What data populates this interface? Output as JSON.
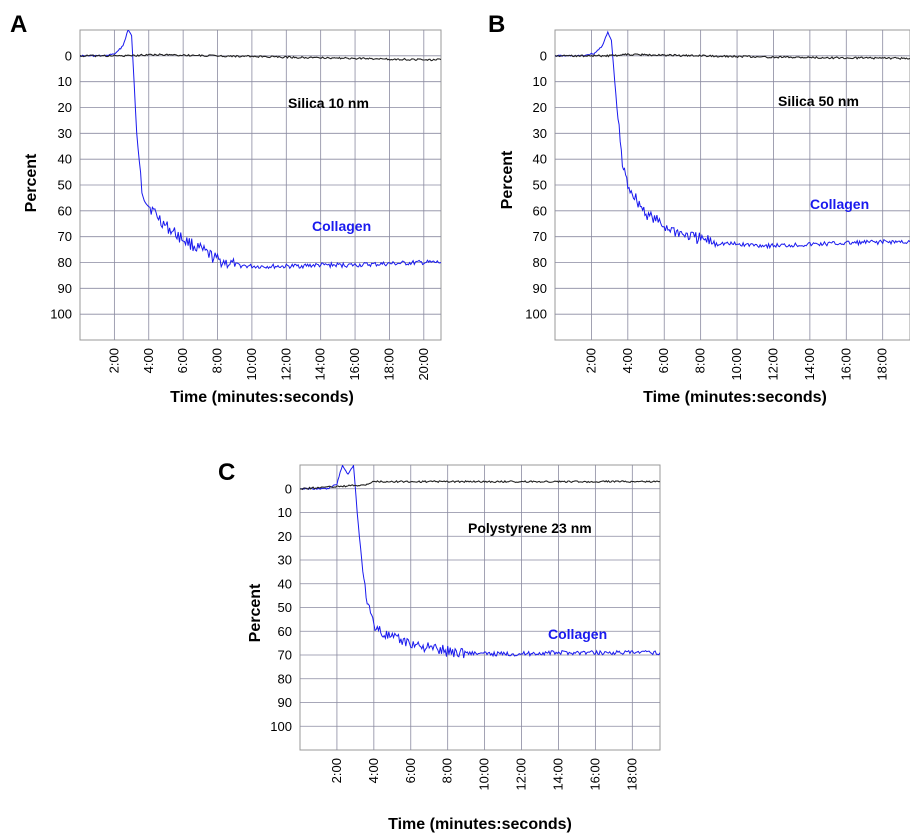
{
  "chart_data": [
    {
      "panel": "A",
      "type": "line",
      "xlabel": "Time (minutes:seconds)",
      "ylabel": "Percent",
      "annotation": "Silica 10 nm",
      "xlim": [
        0,
        21
      ],
      "ylim": [
        -10,
        110
      ],
      "y_inverted": true,
      "grid": true,
      "x_ticks": [
        "2:00",
        "4:00",
        "6:00",
        "8:00",
        "10:00",
        "12:00",
        "14:00",
        "16:00",
        "18:00",
        "20:00"
      ],
      "y_ticks": [
        "0",
        "10",
        "20",
        "30",
        "40",
        "50",
        "60",
        "70",
        "80",
        "90",
        "100"
      ],
      "series": [
        {
          "name": "Collagen",
          "color": "#1a1aee",
          "x": [
            0.0,
            1.5,
            2.1,
            2.5,
            2.8,
            3.0,
            3.3,
            3.6,
            4.0,
            4.5,
            5.0,
            6.0,
            7.0,
            8.0,
            9.0,
            10.0,
            12.0,
            14.0,
            16.0,
            18.0,
            20.0,
            21.0
          ],
          "y": [
            0,
            0,
            -1,
            -4,
            -10,
            -8,
            30,
            52,
            58,
            62,
            66,
            71,
            75,
            79,
            81,
            81.5,
            81.5,
            81,
            81,
            80.5,
            80,
            80
          ]
        },
        {
          "name": "",
          "color": "#222222",
          "x": [
            0.0,
            2.0,
            3.0,
            4.0,
            8.0,
            12.0,
            16.0,
            20.0,
            21.0
          ],
          "y": [
            0,
            0,
            0,
            -0.5,
            0,
            0.5,
            1,
            1.5,
            1.5
          ]
        }
      ]
    },
    {
      "panel": "B",
      "type": "line",
      "xlabel": "Time (minutes:seconds)",
      "ylabel": "Percent",
      "annotation": "Silica 50 nm",
      "xlim": [
        0,
        19.5
      ],
      "ylim": [
        -10,
        110
      ],
      "y_inverted": true,
      "grid": true,
      "x_ticks": [
        "2:00",
        "4:00",
        "6:00",
        "8:00",
        "10:00",
        "12:00",
        "14:00",
        "16:00",
        "18:00"
      ],
      "y_ticks": [
        "0",
        "10",
        "20",
        "30",
        "40",
        "50",
        "60",
        "70",
        "80",
        "90",
        "100"
      ],
      "series": [
        {
          "name": "Collagen",
          "color": "#1a1aee",
          "x": [
            0.0,
            1.5,
            2.2,
            2.6,
            2.9,
            3.1,
            3.4,
            3.7,
            4.0,
            4.5,
            5.0,
            6.0,
            7.0,
            8.0,
            9.0,
            10.0,
            12.0,
            14.0,
            16.0,
            18.0,
            19.5
          ],
          "y": [
            0,
            0,
            -1,
            -4,
            -9,
            -6,
            20,
            42,
            50,
            56,
            61,
            66,
            69,
            71,
            72.5,
            73,
            73.5,
            73,
            72.5,
            72,
            72
          ]
        },
        {
          "name": "",
          "color": "#222222",
          "x": [
            0.0,
            3.0,
            4.0,
            8.0,
            12.0,
            16.0,
            19.5
          ],
          "y": [
            0,
            0,
            -0.5,
            0,
            0.5,
            0.8,
            1
          ]
        }
      ]
    },
    {
      "panel": "C",
      "type": "line",
      "xlabel": "Time (minutes:seconds)",
      "ylabel": "Percent",
      "annotation": "Polystyrene 23 nm",
      "xlim": [
        0,
        19.5
      ],
      "ylim": [
        -10,
        110
      ],
      "y_inverted": true,
      "grid": true,
      "x_ticks": [
        "2:00",
        "4:00",
        "6:00",
        "8:00",
        "10:00",
        "12:00",
        "14:00",
        "16:00",
        "18:00"
      ],
      "y_ticks": [
        "0",
        "10",
        "20",
        "30",
        "40",
        "50",
        "60",
        "70",
        "80",
        "90",
        "100"
      ],
      "series": [
        {
          "name": "Collagen",
          "color": "#1a1aee",
          "x": [
            0.0,
            1.5,
            2.0,
            2.3,
            2.6,
            2.9,
            3.1,
            3.4,
            3.7,
            4.0,
            4.5,
            5.0,
            6.0,
            7.0,
            8.0,
            9.0,
            10.0,
            12.0,
            14.0,
            16.0,
            18.0,
            19.5
          ],
          "y": [
            0,
            0,
            -2,
            -10,
            -6,
            -10,
            10,
            35,
            50,
            57,
            61,
            63,
            65,
            67,
            68.5,
            69,
            69.5,
            69.5,
            69,
            69,
            69,
            69
          ]
        },
        {
          "name": "",
          "color": "#222222",
          "x": [
            0.0,
            2.0,
            3.5,
            4.0,
            8.0,
            12.0,
            16.0,
            19.5
          ],
          "y": [
            0,
            -1,
            -1.5,
            -3,
            -3,
            -3,
            -3,
            -3
          ]
        }
      ]
    }
  ]
}
